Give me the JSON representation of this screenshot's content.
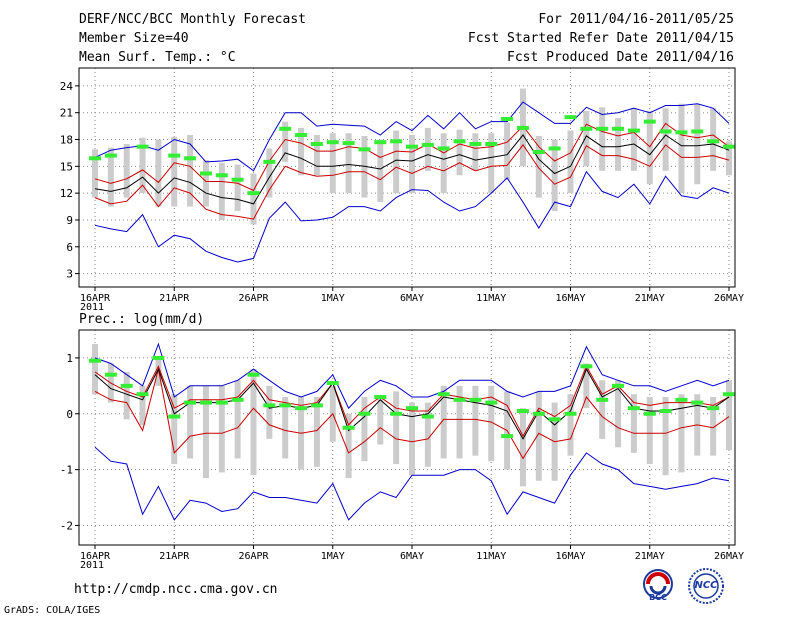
{
  "header": {
    "title": "DERF/NCC/BCC Monthly Forecast",
    "member_size": "Member Size=40",
    "variable": "Mean Surf. Temp.: °C",
    "period": "For 2011/04/16-2011/05/25",
    "fcst_started": "Fcst Started Refer Date 2011/04/15",
    "fcst_produced": "Fcst Produced Date 2011/04/16"
  },
  "footer": {
    "url": "http://cmdp.ncc.cma.gov.cn",
    "credit": "GrADS: COLA/IGES",
    "logos": [
      "BCC",
      "NCC"
    ]
  },
  "colors": {
    "box": "#cccccc",
    "bound": "#0000cc",
    "mean_sd": "#cc0000",
    "mean": "#000000",
    "obs": "#33ee33",
    "grid": "#888888"
  },
  "chart_data": [
    {
      "type": "box-ensemble",
      "title": "Mean Surf. Temp.: °C",
      "ylim": [
        1.5,
        26
      ],
      "yticks": [
        3,
        6,
        9,
        12,
        15,
        18,
        21,
        24
      ],
      "ytick_labels": [
        "3",
        "6",
        "9",
        "12",
        "15",
        "18",
        "21",
        "24"
      ],
      "x_ticks": [
        {
          "day": 0,
          "label": "16APR",
          "label2": "2011"
        },
        {
          "day": 5,
          "label": "21APR"
        },
        {
          "day": 10,
          "label": "26APR"
        },
        {
          "day": 15,
          "label": "1MAY"
        },
        {
          "day": 20,
          "label": "6MAY"
        },
        {
          "day": 25,
          "label": "11MAY"
        },
        {
          "day": 30,
          "label": "16MAY"
        },
        {
          "day": 35,
          "label": "21MAY"
        },
        {
          "day": 40,
          "label": "26MAY"
        }
      ],
      "x_range": [
        0,
        40
      ],
      "series": {
        "max": [
          16.0,
          16.8,
          17.1,
          17.3,
          16.8,
          18.0,
          17.5,
          15.5,
          15.6,
          15.8,
          14.5,
          18.0,
          21.0,
          21.0,
          19.5,
          19.7,
          19.6,
          19.5,
          18.5,
          20.0,
          19.0,
          20.7,
          19.2,
          21.0,
          19.2,
          20.0,
          20.0,
          22.2,
          21.0,
          19.8,
          19.8,
          21.6,
          20.8,
          21.0,
          21.5,
          21.0,
          21.8,
          21.8,
          22.0,
          21.5,
          19.8
        ],
        "min": [
          8.4,
          8.0,
          7.7,
          9.6,
          6.0,
          7.3,
          6.9,
          5.5,
          4.8,
          4.3,
          4.7,
          9.2,
          11.0,
          8.9,
          9.0,
          9.3,
          10.5,
          10.5,
          10.0,
          11.5,
          12.4,
          12.3,
          11.0,
          10.0,
          10.5,
          12.0,
          13.7,
          11.0,
          8.1,
          11.0,
          10.5,
          14.4,
          12.2,
          11.5,
          13.0,
          10.8,
          13.9,
          11.7,
          11.4,
          12.6,
          12.0
        ],
        "mean_plus_sd": [
          13.6,
          13.1,
          13.6,
          14.6,
          13.2,
          15.4,
          15.0,
          13.3,
          13.3,
          13.1,
          12.3,
          15.6,
          18.0,
          17.6,
          16.7,
          16.7,
          17.2,
          17.0,
          16.0,
          16.7,
          16.6,
          17.5,
          16.5,
          17.5,
          17.0,
          17.2,
          17.7,
          19.5,
          17.2,
          15.6,
          16.5,
          19.7,
          18.9,
          18.4,
          18.8,
          17.2,
          19.8,
          18.5,
          18.2,
          18.5,
          17.2
        ],
        "mean": [
          12.5,
          12.2,
          12.6,
          13.8,
          12.0,
          13.7,
          13.2,
          12.0,
          11.5,
          11.3,
          10.8,
          13.8,
          16.5,
          15.9,
          15.0,
          15.0,
          15.2,
          15.0,
          14.7,
          15.7,
          15.6,
          16.3,
          15.8,
          16.3,
          15.7,
          16.0,
          16.3,
          18.5,
          15.8,
          14.2,
          15.0,
          18.4,
          17.2,
          17.2,
          17.5,
          16.3,
          18.5,
          17.3,
          17.3,
          17.5,
          16.8
        ],
        "mean_minus_sd": [
          11.5,
          10.8,
          11.1,
          12.9,
          10.5,
          12.6,
          12.0,
          10.2,
          9.6,
          9.4,
          9.1,
          12.4,
          15.0,
          14.3,
          13.9,
          14.0,
          14.4,
          14.4,
          13.5,
          14.9,
          14.2,
          15.0,
          14.5,
          15.4,
          14.5,
          15.0,
          15.1,
          17.4,
          14.8,
          13.0,
          13.8,
          17.3,
          16.2,
          16.2,
          15.8,
          15.0,
          17.4,
          16.0,
          16.0,
          16.2,
          15.7
        ],
        "obs": [
          15.9,
          16.2,
          null,
          17.2,
          null,
          16.2,
          15.9,
          14.2,
          14.0,
          13.5,
          12.0,
          15.5,
          19.2,
          18.5,
          17.5,
          17.7,
          17.6,
          16.9,
          17.7,
          17.8,
          17.2,
          17.4,
          17.0,
          17.8,
          17.5,
          17.5,
          20.3,
          19.3,
          16.6,
          17.0,
          20.5,
          19.2,
          19.2,
          19.2,
          19.0,
          20.0,
          18.9,
          18.8,
          18.9,
          17.8,
          17.2
        ],
        "box_high": [
          16.9,
          17.1,
          17.5,
          18.2,
          18.0,
          18.3,
          18.5,
          15.7,
          15.4,
          15.2,
          14.2,
          17.0,
          20.0,
          19.3,
          18.5,
          18.7,
          18.7,
          18.4,
          18.0,
          19.0,
          18.5,
          19.3,
          18.7,
          19.1,
          18.7,
          18.7,
          19.9,
          23.7,
          18.4,
          18.0,
          19.0,
          21.2,
          21.6,
          20.4,
          21.5,
          21.2,
          21.5,
          22.0,
          22.0,
          21.5,
          17.8
        ],
        "box_low": [
          11.5,
          10.5,
          11.5,
          12.0,
          10.5,
          10.5,
          10.5,
          10.5,
          9.0,
          10.0,
          8.5,
          11.5,
          15.5,
          14.0,
          14.0,
          12.0,
          12.0,
          11.5,
          11.0,
          12.0,
          12.0,
          14.5,
          12.0,
          14.0,
          14.5,
          12.0,
          13.5,
          15.0,
          11.5,
          10.0,
          12.0,
          15.0,
          14.5,
          14.5,
          14.5,
          13.0,
          14.5,
          12.0,
          13.0,
          14.5,
          14.0
        ]
      }
    },
    {
      "type": "box-ensemble",
      "title": "Prec.: log(mm/d)",
      "ylim": [
        -2.35,
        1.5
      ],
      "yticks": [
        -2,
        -1,
        0,
        1
      ],
      "ytick_labels": [
        "-2",
        "-1",
        "0",
        "1"
      ],
      "x_ticks": [
        {
          "day": 0,
          "label": "16APR",
          "label2": "2011"
        },
        {
          "day": 5,
          "label": "21APR"
        },
        {
          "day": 10,
          "label": "26APR"
        },
        {
          "day": 15,
          "label": "1MAY"
        },
        {
          "day": 20,
          "label": "6MAY"
        },
        {
          "day": 25,
          "label": "11MAY"
        },
        {
          "day": 30,
          "label": "16MAY"
        },
        {
          "day": 35,
          "label": "21MAY"
        },
        {
          "day": 40,
          "label": "26MAY"
        }
      ],
      "x_range": [
        0,
        40
      ],
      "series": {
        "max": [
          1.0,
          0.9,
          0.7,
          0.5,
          1.25,
          0.3,
          0.5,
          0.5,
          0.5,
          0.6,
          0.8,
          0.6,
          0.4,
          0.3,
          0.4,
          0.7,
          0.1,
          0.4,
          0.6,
          0.5,
          0.3,
          0.3,
          0.4,
          0.6,
          0.6,
          0.6,
          0.4,
          0.3,
          0.4,
          0.4,
          0.5,
          1.2,
          0.7,
          0.6,
          0.5,
          0.5,
          0.4,
          0.5,
          0.6,
          0.5,
          0.6
        ],
        "min": [
          -0.6,
          -0.85,
          -0.9,
          -1.8,
          -1.3,
          -1.9,
          -1.55,
          -1.6,
          -1.75,
          -1.7,
          -1.4,
          -1.5,
          -1.5,
          -1.55,
          -1.6,
          -1.25,
          -1.9,
          -1.6,
          -1.4,
          -1.5,
          -1.1,
          -1.1,
          -1.1,
          -1.0,
          -1.0,
          -1.2,
          -1.8,
          -1.4,
          -1.5,
          -1.6,
          -1.1,
          -0.7,
          -0.9,
          -1.0,
          -1.25,
          -1.3,
          -1.35,
          -1.3,
          -1.25,
          -1.15,
          -1.2
        ],
        "mean_plus_sd": [
          0.75,
          0.55,
          0.4,
          0.3,
          0.85,
          0.1,
          0.25,
          0.25,
          0.25,
          0.3,
          0.6,
          0.25,
          0.2,
          0.15,
          0.2,
          0.55,
          -0.2,
          0.1,
          0.3,
          0.1,
          0.05,
          0.05,
          0.35,
          0.3,
          0.25,
          0.3,
          0.15,
          -0.4,
          0.1,
          -0.05,
          0.15,
          0.85,
          0.35,
          0.5,
          0.2,
          0.15,
          0.2,
          0.2,
          0.2,
          0.15,
          0.3
        ],
        "mean": [
          0.7,
          0.45,
          0.35,
          0.25,
          0.8,
          0.0,
          0.2,
          0.2,
          0.2,
          0.25,
          0.55,
          0.1,
          0.15,
          0.1,
          0.15,
          0.55,
          -0.3,
          -0.05,
          0.25,
          0.0,
          -0.05,
          0.0,
          0.3,
          0.25,
          0.2,
          0.15,
          0.05,
          -0.45,
          0.05,
          -0.2,
          0.05,
          0.8,
          0.3,
          0.45,
          0.1,
          0.05,
          0.05,
          0.1,
          0.15,
          0.1,
          0.3
        ],
        "mean_minus_sd": [
          0.4,
          0.25,
          0.2,
          -0.3,
          0.8,
          -0.7,
          -0.4,
          -0.35,
          -0.35,
          -0.25,
          0.1,
          -0.2,
          -0.3,
          -0.35,
          -0.3,
          0.0,
          -0.7,
          -0.5,
          -0.25,
          -0.45,
          -0.5,
          -0.45,
          -0.1,
          -0.1,
          -0.1,
          -0.15,
          -0.3,
          -0.8,
          -0.35,
          -0.5,
          -0.45,
          0.3,
          -0.05,
          -0.25,
          -0.35,
          -0.35,
          -0.35,
          -0.25,
          -0.2,
          -0.25,
          -0.05
        ],
        "obs": [
          0.95,
          0.7,
          0.5,
          0.35,
          1.0,
          -0.05,
          0.2,
          0.2,
          0.2,
          0.25,
          0.7,
          0.15,
          0.15,
          0.1,
          0.15,
          0.55,
          -0.25,
          0.0,
          0.3,
          0.0,
          0.1,
          -0.05,
          0.35,
          0.25,
          0.25,
          0.2,
          -0.4,
          0.05,
          0.0,
          -0.1,
          0.0,
          0.85,
          0.25,
          0.5,
          0.1,
          0.0,
          0.05,
          0.25,
          0.2,
          0.1,
          0.35
        ],
        "box_high": [
          1.25,
          0.9,
          0.75,
          0.5,
          1.0,
          0.35,
          0.5,
          0.5,
          0.5,
          0.6,
          0.8,
          0.5,
          0.3,
          0.3,
          0.3,
          0.5,
          0.0,
          0.3,
          0.3,
          0.4,
          0.2,
          0.2,
          0.5,
          0.5,
          0.5,
          0.5,
          0.4,
          0.1,
          0.4,
          0.2,
          0.35,
          0.9,
          0.6,
          0.6,
          0.35,
          0.3,
          0.3,
          0.35,
          0.35,
          0.3,
          0.6
        ],
        "box_low": [
          0.35,
          0.2,
          -0.1,
          -0.2,
          0.5,
          -0.9,
          -0.8,
          -1.15,
          -1.05,
          -0.8,
          -1.1,
          -0.45,
          -0.8,
          -1.0,
          -0.95,
          -0.5,
          -1.15,
          -0.85,
          -0.55,
          -0.9,
          -1.1,
          -0.95,
          -0.8,
          -0.8,
          -0.75,
          -0.85,
          -1.0,
          -1.3,
          -1.2,
          -1.2,
          -0.75,
          0.1,
          -0.45,
          -0.6,
          -0.7,
          -0.9,
          -1.1,
          -1.05,
          -0.75,
          -0.75,
          -0.65
        ]
      }
    }
  ]
}
